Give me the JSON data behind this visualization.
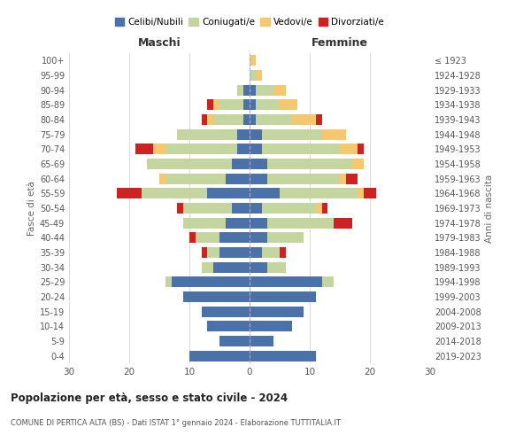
{
  "age_groups": [
    "0-4",
    "5-9",
    "10-14",
    "15-19",
    "20-24",
    "25-29",
    "30-34",
    "35-39",
    "40-44",
    "45-49",
    "50-54",
    "55-59",
    "60-64",
    "65-69",
    "70-74",
    "75-79",
    "80-84",
    "85-89",
    "90-94",
    "95-99",
    "100+"
  ],
  "birth_years": [
    "2019-2023",
    "2014-2018",
    "2009-2013",
    "2004-2008",
    "1999-2003",
    "1994-1998",
    "1989-1993",
    "1984-1988",
    "1979-1983",
    "1974-1978",
    "1969-1973",
    "1964-1968",
    "1959-1963",
    "1954-1958",
    "1949-1953",
    "1944-1948",
    "1939-1943",
    "1934-1938",
    "1929-1933",
    "1924-1928",
    "≤ 1923"
  ],
  "colors": {
    "celibi": "#4a72a8",
    "coniugati": "#c5d5a0",
    "vedovi": "#f5c870",
    "divorziati": "#cc2222"
  },
  "maschi": {
    "celibi": [
      10,
      5,
      7,
      8,
      11,
      13,
      6,
      5,
      5,
      4,
      3,
      7,
      4,
      3,
      2,
      2,
      1,
      1,
      1,
      0,
      0
    ],
    "coniugati": [
      0,
      0,
      0,
      0,
      0,
      1,
      2,
      2,
      4,
      7,
      8,
      11,
      10,
      14,
      12,
      10,
      5,
      4,
      1,
      0,
      0
    ],
    "vedovi": [
      0,
      0,
      0,
      0,
      0,
      0,
      0,
      0,
      0,
      0,
      0,
      0,
      1,
      0,
      2,
      0,
      1,
      1,
      0,
      0,
      0
    ],
    "divorziati": [
      0,
      0,
      0,
      0,
      0,
      0,
      0,
      1,
      1,
      0,
      1,
      4,
      0,
      0,
      3,
      0,
      1,
      1,
      0,
      0,
      0
    ]
  },
  "femmine": {
    "celibi": [
      11,
      4,
      7,
      9,
      11,
      12,
      3,
      2,
      3,
      3,
      2,
      5,
      3,
      3,
      2,
      2,
      1,
      1,
      1,
      0,
      0
    ],
    "coniugati": [
      0,
      0,
      0,
      0,
      0,
      2,
      3,
      3,
      6,
      11,
      9,
      13,
      12,
      14,
      13,
      10,
      6,
      4,
      3,
      1,
      0
    ],
    "vedovi": [
      0,
      0,
      0,
      0,
      0,
      0,
      0,
      0,
      0,
      0,
      1,
      1,
      1,
      2,
      3,
      4,
      4,
      3,
      2,
      1,
      1
    ],
    "divorziati": [
      0,
      0,
      0,
      0,
      0,
      0,
      0,
      1,
      0,
      3,
      1,
      2,
      2,
      0,
      1,
      0,
      1,
      0,
      0,
      0,
      0
    ]
  },
  "title1": "Popolazione per età, sesso e stato civile - 2024",
  "title2": "COMUNE DI PERTICA ALTA (BS) - Dati ISTAT 1° gennaio 2024 - Elaborazione TUTTITALIA.IT",
  "xlabel_left": "Maschi",
  "xlabel_right": "Femmine",
  "ylabel_left": "Fasce di età",
  "ylabel_right": "Anni di nascita",
  "xlim": 30,
  "legend_labels": [
    "Celibi/Nubili",
    "Coniugati/e",
    "Vedovi/e",
    "Divorziati/e"
  ],
  "background_color": "#ffffff",
  "grid_color": "#cccccc"
}
